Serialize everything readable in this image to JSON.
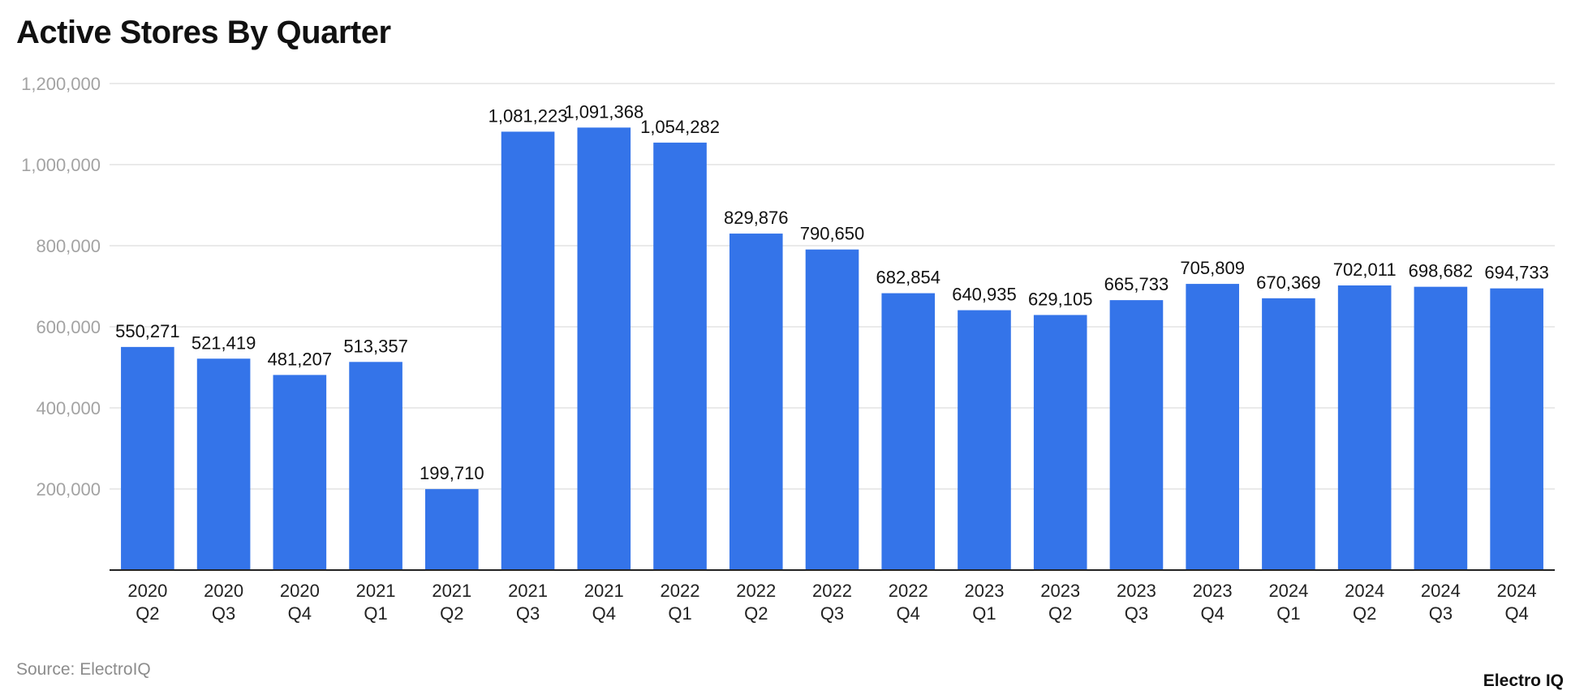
{
  "title": "Active Stores By Quarter",
  "source": "Source: ElectroIQ",
  "brand": "Electro IQ",
  "colors": {
    "bar": "#3474e9",
    "grid": "#e3e3e3",
    "axis": "#222222"
  },
  "chart_data": {
    "type": "bar",
    "title": "Active Stores By Quarter",
    "categories": [
      [
        "2020",
        "Q2"
      ],
      [
        "2020",
        "Q3"
      ],
      [
        "2020",
        "Q4"
      ],
      [
        "2021",
        "Q1"
      ],
      [
        "2021",
        "Q2"
      ],
      [
        "2021",
        "Q3"
      ],
      [
        "2021",
        "Q4"
      ],
      [
        "2022",
        "Q1"
      ],
      [
        "2022",
        "Q2"
      ],
      [
        "2022",
        "Q3"
      ],
      [
        "2022",
        "Q4"
      ],
      [
        "2023",
        "Q1"
      ],
      [
        "2023",
        "Q2"
      ],
      [
        "2023",
        "Q3"
      ],
      [
        "2023",
        "Q4"
      ],
      [
        "2024",
        "Q1"
      ],
      [
        "2024",
        "Q2"
      ],
      [
        "2024",
        "Q3"
      ],
      [
        "2024",
        "Q4"
      ]
    ],
    "values": [
      550271,
      521419,
      481207,
      513357,
      199710,
      1081223,
      1091368,
      1054282,
      829876,
      790650,
      682854,
      640935,
      629105,
      665733,
      705809,
      670369,
      702011,
      698682,
      694733
    ],
    "data_labels": [
      "550,271",
      "521,419",
      "481,207",
      "513,357",
      "199,710",
      "1,081,223",
      "1,091,368",
      "1,054,282",
      "829,876",
      "790,650",
      "682,854",
      "640,935",
      "629,105",
      "665,733",
      "705,809",
      "670,369",
      "702,011",
      "698,682",
      "694,733"
    ],
    "yticks": [
      200000,
      400000,
      600000,
      800000,
      1000000,
      1200000
    ],
    "ytick_labels": [
      "200,000",
      "400,000",
      "600,000",
      "800,000",
      "1,000,000",
      "1,200,000"
    ],
    "ylim": [
      0,
      1200000
    ],
    "xlabel": "",
    "ylabel": "",
    "grid": true,
    "legend": "none"
  }
}
